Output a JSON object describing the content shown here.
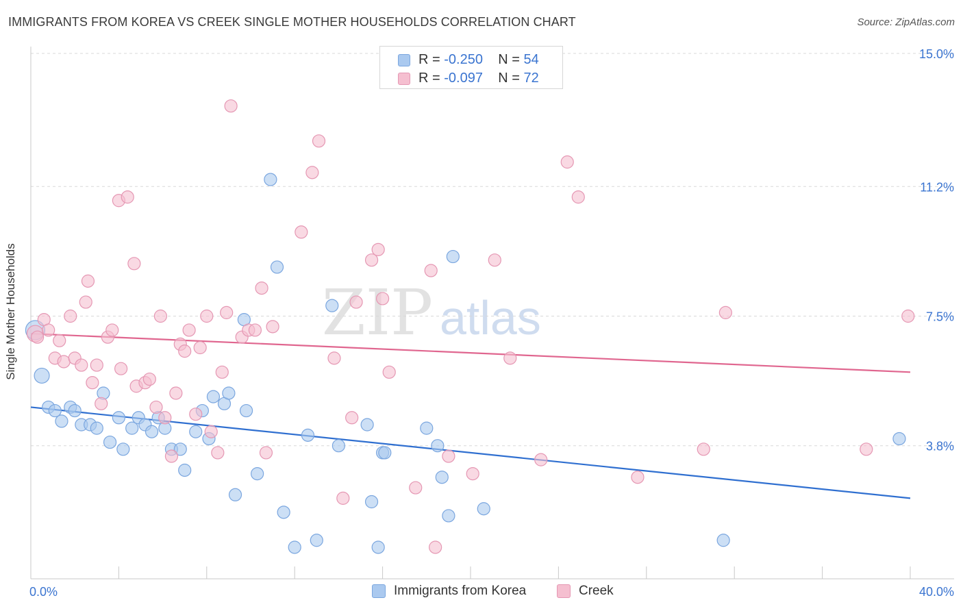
{
  "title": "IMMIGRANTS FROM KOREA VS CREEK SINGLE MOTHER HOUSEHOLDS CORRELATION CHART",
  "source": "Source: ZipAtlas.com",
  "watermark": {
    "zip": "ZIP",
    "atlas": "atlas"
  },
  "colors": {
    "korea_fill": "#aac9ef",
    "korea_stroke": "#7aa6df",
    "korea_line": "#2f6fd0",
    "creek_fill": "#f5bfd0",
    "creek_stroke": "#e597b3",
    "creek_line": "#e0668f",
    "tick_label": "#3a74d0",
    "grid": "#d8d8d8"
  },
  "legend": {
    "korea": {
      "r_label": "R = ",
      "r_value": "-0.250",
      "n_label": "N = ",
      "n_value": "54"
    },
    "creek": {
      "r_label": "R = ",
      "r_value": "-0.097",
      "n_label": "N = ",
      "n_value": "72"
    }
  },
  "chart_data": {
    "type": "scatter",
    "title": "IMMIGRANTS FROM KOREA VS CREEK SINGLE MOTHER HOUSEHOLDS CORRELATION CHART",
    "xlabel": "",
    "ylabel": "Single Mother Households",
    "xlim": [
      0,
      40
    ],
    "ylim": [
      0,
      15
    ],
    "x_tick_labels": [
      "0.0%",
      "40.0%"
    ],
    "y_ticks": [
      3.8,
      7.5,
      11.2,
      15.0
    ],
    "y_tick_labels": [
      "3.8%",
      "7.5%",
      "11.2%",
      "15.0%"
    ],
    "grid": true,
    "legend_position": "top-center",
    "series": [
      {
        "name": "Immigrants from Korea",
        "trend": {
          "x": [
            0,
            40
          ],
          "y": [
            4.9,
            2.3
          ]
        },
        "points": [
          [
            0.2,
            7.1,
            14
          ],
          [
            0.5,
            5.8,
            11
          ],
          [
            0.8,
            4.9,
            9
          ],
          [
            1.1,
            4.8,
            9
          ],
          [
            1.4,
            4.5,
            9
          ],
          [
            1.8,
            4.9,
            9
          ],
          [
            2.0,
            4.8,
            9
          ],
          [
            2.3,
            4.4,
            9
          ],
          [
            2.7,
            4.4,
            9
          ],
          [
            3.0,
            4.3,
            9
          ],
          [
            3.3,
            5.3,
            9
          ],
          [
            3.6,
            3.9,
            9
          ],
          [
            4.0,
            4.6,
            9
          ],
          [
            4.2,
            3.7,
            9
          ],
          [
            4.6,
            4.3,
            9
          ],
          [
            4.9,
            4.6,
            9
          ],
          [
            5.2,
            4.4,
            9
          ],
          [
            5.5,
            4.2,
            9
          ],
          [
            5.8,
            4.6,
            9
          ],
          [
            6.1,
            4.3,
            9
          ],
          [
            6.4,
            3.7,
            9
          ],
          [
            6.8,
            3.7,
            9
          ],
          [
            7.0,
            3.1,
            9
          ],
          [
            7.5,
            4.2,
            9
          ],
          [
            7.8,
            4.8,
            9
          ],
          [
            8.1,
            4.0,
            9
          ],
          [
            8.3,
            5.2,
            9
          ],
          [
            8.8,
            5.0,
            9
          ],
          [
            9.0,
            5.3,
            9
          ],
          [
            9.3,
            2.4,
            9
          ],
          [
            9.7,
            7.4,
            9
          ],
          [
            9.8,
            4.8,
            9
          ],
          [
            10.3,
            3.0,
            9
          ],
          [
            10.9,
            11.4,
            9
          ],
          [
            11.2,
            8.9,
            9
          ],
          [
            11.5,
            1.9,
            9
          ],
          [
            12.0,
            0.9,
            9
          ],
          [
            12.6,
            4.1,
            9
          ],
          [
            13.0,
            1.1,
            9
          ],
          [
            13.7,
            7.8,
            9
          ],
          [
            14.0,
            3.8,
            9
          ],
          [
            15.3,
            4.4,
            9
          ],
          [
            15.5,
            2.2,
            9
          ],
          [
            15.8,
            0.9,
            9
          ],
          [
            16.0,
            3.6,
            9
          ],
          [
            16.1,
            3.6,
            9
          ],
          [
            18.0,
            4.3,
            9
          ],
          [
            18.5,
            3.8,
            9
          ],
          [
            18.7,
            2.9,
            9
          ],
          [
            19.0,
            1.8,
            9
          ],
          [
            19.2,
            9.2,
            9
          ],
          [
            20.6,
            2.0,
            9
          ],
          [
            31.5,
            1.1,
            9
          ],
          [
            39.5,
            4.0,
            9
          ]
        ]
      },
      {
        "name": "Creek",
        "trend": {
          "x": [
            0,
            40
          ],
          "y": [
            7.0,
            5.9
          ]
        },
        "points": [
          [
            0.2,
            7.0,
            12
          ],
          [
            0.3,
            6.9,
            9
          ],
          [
            0.6,
            7.4,
            9
          ],
          [
            0.8,
            7.1,
            9
          ],
          [
            1.1,
            6.3,
            9
          ],
          [
            1.3,
            6.8,
            9
          ],
          [
            1.5,
            6.2,
            9
          ],
          [
            1.8,
            7.5,
            9
          ],
          [
            2.0,
            6.3,
            9
          ],
          [
            2.3,
            6.1,
            9
          ],
          [
            2.5,
            7.9,
            9
          ],
          [
            2.6,
            8.5,
            9
          ],
          [
            2.8,
            5.6,
            9
          ],
          [
            3.0,
            6.1,
            9
          ],
          [
            3.2,
            5.0,
            9
          ],
          [
            3.5,
            6.9,
            9
          ],
          [
            3.7,
            7.1,
            9
          ],
          [
            4.0,
            10.8,
            9
          ],
          [
            4.1,
            6.0,
            9
          ],
          [
            4.4,
            10.9,
            9
          ],
          [
            4.7,
            9.0,
            9
          ],
          [
            4.8,
            5.5,
            9
          ],
          [
            5.2,
            5.6,
            9
          ],
          [
            5.4,
            5.7,
            9
          ],
          [
            5.7,
            4.9,
            9
          ],
          [
            5.9,
            7.5,
            9
          ],
          [
            6.1,
            4.6,
            9
          ],
          [
            6.4,
            3.5,
            9
          ],
          [
            6.6,
            5.3,
            9
          ],
          [
            6.8,
            6.7,
            9
          ],
          [
            7.0,
            6.5,
            9
          ],
          [
            7.2,
            7.1,
            9
          ],
          [
            7.5,
            4.7,
            9
          ],
          [
            7.7,
            6.6,
            9
          ],
          [
            8.0,
            7.5,
            9
          ],
          [
            8.2,
            4.2,
            9
          ],
          [
            8.5,
            3.6,
            9
          ],
          [
            8.7,
            5.9,
            9
          ],
          [
            8.9,
            7.6,
            9
          ],
          [
            9.1,
            13.5,
            9
          ],
          [
            9.6,
            6.9,
            9
          ],
          [
            9.9,
            7.1,
            9
          ],
          [
            10.2,
            7.1,
            9
          ],
          [
            10.5,
            8.3,
            9
          ],
          [
            10.7,
            3.6,
            9
          ],
          [
            11.0,
            7.2,
            9
          ],
          [
            12.3,
            9.9,
            9
          ],
          [
            12.8,
            11.6,
            9
          ],
          [
            13.1,
            12.5,
            9
          ],
          [
            13.8,
            6.3,
            9
          ],
          [
            14.2,
            2.3,
            9
          ],
          [
            14.6,
            4.6,
            9
          ],
          [
            14.8,
            7.9,
            9
          ],
          [
            15.5,
            9.1,
            9
          ],
          [
            15.8,
            9.4,
            9
          ],
          [
            16.0,
            8.0,
            9
          ],
          [
            16.3,
            5.9,
            9
          ],
          [
            17.5,
            2.6,
            9
          ],
          [
            18.2,
            8.8,
            9
          ],
          [
            18.4,
            0.9,
            9
          ],
          [
            19.0,
            3.5,
            9
          ],
          [
            20.1,
            3.0,
            9
          ],
          [
            21.1,
            9.1,
            9
          ],
          [
            21.8,
            6.3,
            9
          ],
          [
            23.2,
            3.4,
            9
          ],
          [
            24.4,
            11.9,
            9
          ],
          [
            24.9,
            10.9,
            9
          ],
          [
            27.6,
            2.9,
            9
          ],
          [
            30.6,
            3.7,
            9
          ],
          [
            31.6,
            7.6,
            9
          ],
          [
            38.0,
            3.7,
            9
          ],
          [
            39.9,
            7.5,
            9
          ]
        ]
      }
    ]
  }
}
